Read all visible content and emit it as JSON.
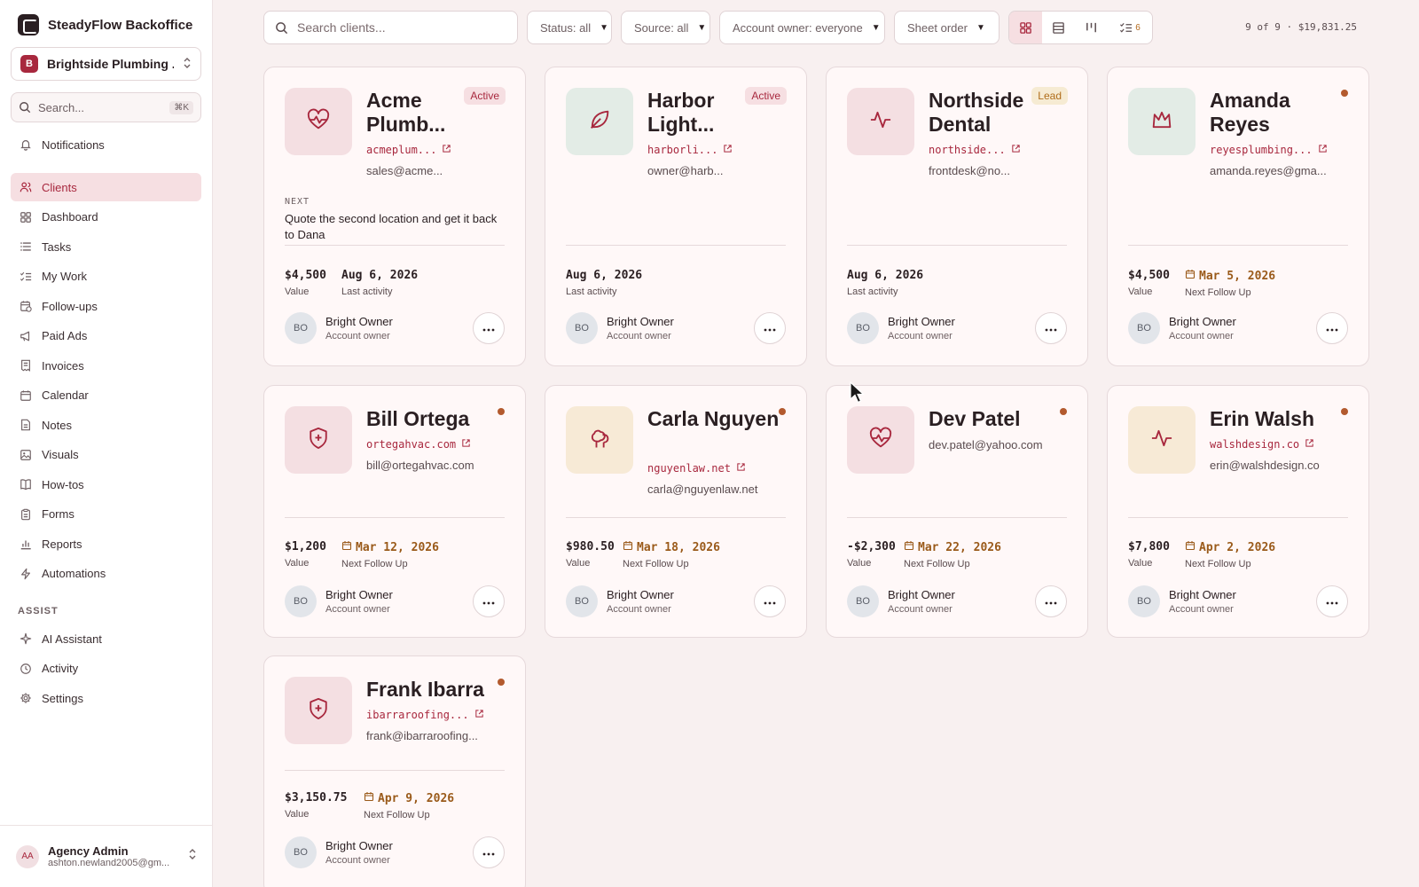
{
  "app": {
    "brand": "SteadyFlow Backoffice"
  },
  "sidebar": {
    "workspace": {
      "initial": "B",
      "name": "Brightside Plumbing ..."
    },
    "search": {
      "placeholder": "Search...",
      "shortcut": "⌘K"
    },
    "notifications": "Notifications",
    "items": [
      {
        "label": "Clients",
        "icon": "users-icon",
        "active": true
      },
      {
        "label": "Dashboard",
        "icon": "grid-icon"
      },
      {
        "label": "Tasks",
        "icon": "list-icon"
      },
      {
        "label": "My Work",
        "icon": "checklist-icon"
      },
      {
        "label": "Follow-ups",
        "icon": "calendar-clock-icon"
      },
      {
        "label": "Paid Ads",
        "icon": "megaphone-icon"
      },
      {
        "label": "Invoices",
        "icon": "receipt-icon"
      },
      {
        "label": "Calendar",
        "icon": "calendar-icon"
      },
      {
        "label": "Notes",
        "icon": "note-icon"
      },
      {
        "label": "Visuals",
        "icon": "image-icon"
      },
      {
        "label": "How-tos",
        "icon": "book-icon"
      },
      {
        "label": "Forms",
        "icon": "clipboard-icon"
      },
      {
        "label": "Reports",
        "icon": "bar-chart-icon"
      },
      {
        "label": "Automations",
        "icon": "zap-icon"
      }
    ],
    "assist_label": "ASSIST",
    "assist_items": [
      {
        "label": "AI Assistant",
        "icon": "sparkle-icon"
      },
      {
        "label": "Activity",
        "icon": "clock-icon"
      },
      {
        "label": "Settings",
        "icon": "gear-icon"
      }
    ],
    "account": {
      "initials": "AA",
      "name": "Agency Admin",
      "email": "ashton.newland2005@gm..."
    }
  },
  "toolbar": {
    "search_placeholder": "Search clients...",
    "status": "Status: all",
    "source": "Source: all",
    "owner": "Account owner: everyone",
    "order": "Sheet order",
    "task_count": "6",
    "summary": "9 of 9 · $19,831.25"
  },
  "cards": [
    {
      "name": "Acme Plumb...",
      "badge": "Active",
      "link": "acmeplum...",
      "email": "sales@acme...",
      "next_label": "NEXT",
      "next": "Quote the second location and get it back to Dana",
      "value": "$4,500",
      "value_label": "Value",
      "date": "Aug 6, 2026",
      "date_label": "Last activity",
      "owner_initials": "BO",
      "owner": "Bright Owner",
      "owner_role": "Account owner",
      "icon": "heart-pulse-icon"
    },
    {
      "name": "Harbor Light...",
      "badge": "Active",
      "link": "harborli...",
      "email": "owner@harb...",
      "date": "Aug 6, 2026",
      "date_label": "Last activity",
      "owner_initials": "BO",
      "owner": "Bright Owner",
      "owner_role": "Account owner",
      "icon": "leaf-icon"
    },
    {
      "name": "Northside Dental",
      "badge": "Lead",
      "link": "northside...",
      "email": "frontdesk@no...",
      "date": "Aug 6, 2026",
      "date_label": "Last activity",
      "owner_initials": "BO",
      "owner": "Bright Owner",
      "owner_role": "Account owner",
      "icon": "activity-icon"
    },
    {
      "name": "Amanda Reyes",
      "link": "reyesplumbing...",
      "email": "amanda.reyes@gma...",
      "value": "$4,500",
      "value_label": "Value",
      "date": "Mar 5, 2026",
      "date_label": "Next Follow Up",
      "owner_initials": "BO",
      "owner": "Bright Owner",
      "owner_role": "Account owner",
      "icon": "crown-icon"
    },
    {
      "name": "Bill Ortega",
      "link": "ortegahvac.com",
      "email": "bill@ortegahvac.com",
      "value": "$1,200",
      "value_label": "Value",
      "date": "Mar 12, 2026",
      "date_label": "Next Follow Up",
      "owner_initials": "BO",
      "owner": "Bright Owner",
      "owner_role": "Account owner",
      "icon": "shield-plus-icon"
    },
    {
      "name": "Carla Nguyen",
      "link": "nguyenlaw.net",
      "email": "carla@nguyenlaw.net",
      "value": "$980.50",
      "value_label": "Value",
      "date": "Mar 18, 2026",
      "date_label": "Next Follow Up",
      "owner_initials": "BO",
      "owner": "Bright Owner",
      "owner_role": "Account owner",
      "icon": "trees-icon"
    },
    {
      "name": "Dev Patel",
      "email": "dev.patel@yahoo.com",
      "value": "-$2,300",
      "value_label": "Value",
      "date": "Mar 22, 2026",
      "date_label": "Next Follow Up",
      "owner_initials": "BO",
      "owner": "Bright Owner",
      "owner_role": "Account owner",
      "icon": "heart-pulse-icon"
    },
    {
      "name": "Erin Walsh",
      "link": "walshdesign.co",
      "email": "erin@walshdesign.co",
      "value": "$7,800",
      "value_label": "Value",
      "date": "Apr 2, 2026",
      "date_label": "Next Follow Up",
      "owner_initials": "BO",
      "owner": "Bright Owner",
      "owner_role": "Account owner",
      "icon": "activity-icon"
    },
    {
      "name": "Frank Ibarra",
      "link": "ibarraroofing...",
      "email": "frank@ibarraroofing...",
      "value": "$3,150.75",
      "value_label": "Value",
      "date": "Apr 9, 2026",
      "date_label": "Next Follow Up",
      "owner_initials": "BO",
      "owner": "Bright Owner",
      "owner_role": "Account owner",
      "icon": "shield-plus-icon"
    }
  ],
  "colors": {
    "accent": "#a8283e",
    "followup": "#9a5a1a",
    "dot": "#b35a2e",
    "lead": "#b06d1a"
  }
}
